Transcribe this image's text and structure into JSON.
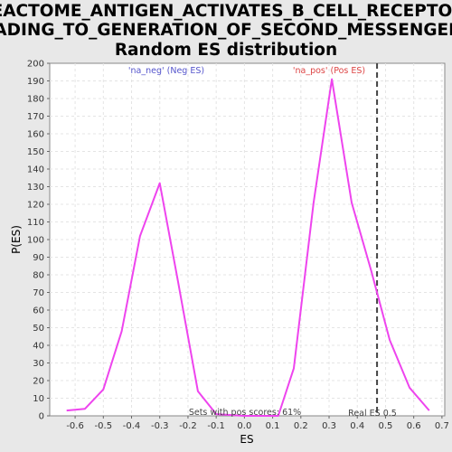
{
  "chart_data": {
    "type": "line",
    "title_lines": [
      "REACTOME_ANTIGEN_ACTIVATES_B_CELL_RECEPTOR_",
      "LEADING_TO_GENERATION_OF_SECOND_MESSENGERS:",
      "Random ES distribution"
    ],
    "xlabel": "ES",
    "ylabel": "P(ES)",
    "xlim": [
      -0.69,
      0.71
    ],
    "ylim": [
      0,
      200
    ],
    "x_ticks": [
      -0.6,
      -0.5,
      -0.4,
      -0.3,
      -0.2,
      -0.1,
      0.0,
      0.1,
      0.2,
      0.3,
      0.4,
      0.5,
      0.6,
      0.7
    ],
    "x_tick_labels": [
      "-0.6",
      "-0.5",
      "-0.4",
      "-0.3",
      "-0.2",
      "-0.1",
      "0.0",
      "0.1",
      "0.2",
      "0.3",
      "0.4",
      "0.5",
      "0.6",
      "0.7"
    ],
    "y_ticks": [
      0,
      10,
      20,
      30,
      40,
      50,
      60,
      70,
      80,
      90,
      100,
      110,
      120,
      130,
      140,
      150,
      160,
      170,
      180,
      190,
      200
    ],
    "grid": true,
    "series": [
      {
        "color": "#ee44ee",
        "x": [
          -0.63,
          -0.565,
          -0.5,
          -0.435,
          -0.37,
          -0.3,
          -0.235,
          -0.165,
          -0.1,
          0.0,
          0.12,
          0.175,
          0.245,
          0.31,
          0.38,
          0.45,
          0.515,
          0.585,
          0.655
        ],
        "y": [
          3,
          4,
          15,
          48,
          102,
          132,
          76,
          14,
          1,
          0,
          0,
          27,
          121,
          191,
          121,
          82,
          43,
          16,
          3
        ]
      }
    ],
    "reference_line": {
      "x": 0.47,
      "label": "Real ES 0.5",
      "style": "dashed",
      "color": "#444444"
    },
    "annotations": {
      "neg_label": "'na_neg' (Neg ES)",
      "neg_color": "#5555cc",
      "pos_label": "'na_pos' (Pos ES)",
      "pos_color": "#dd4444",
      "sets_label": "Sets with pos scores: 61%"
    }
  }
}
